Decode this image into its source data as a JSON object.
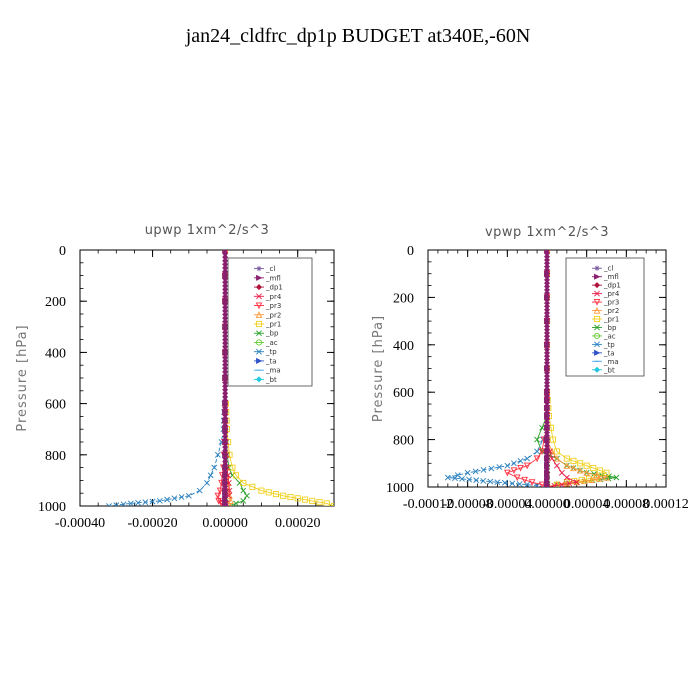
{
  "page": {
    "title": "jan24_cldfrc_dp1p  BUDGET at340E,-60N"
  },
  "series_styles": [
    {
      "name": "_cl",
      "color": "#7a5aa0",
      "marker": "star"
    },
    {
      "name": "_mfl",
      "color": "#8a1f6e",
      "marker": "tri-right"
    },
    {
      "name": "_dp1",
      "color": "#b0143c",
      "marker": "diamond"
    },
    {
      "name": "_pr4",
      "color": "#e8204a",
      "marker": "x"
    },
    {
      "name": "_pr3",
      "color": "#ff3040",
      "marker": "tri-down"
    },
    {
      "name": "_pr2",
      "color": "#ff9a3c",
      "marker": "tri-up"
    },
    {
      "name": "_pr1",
      "color": "#f0d020",
      "marker": "square"
    },
    {
      "name": "_bp",
      "color": "#2aa02a",
      "marker": "x"
    },
    {
      "name": "_ac",
      "color": "#66cc33",
      "marker": "circle"
    },
    {
      "name": "_tp",
      "color": "#2a80c0",
      "marker": "x"
    },
    {
      "name": "_ta",
      "color": "#3050c8",
      "marker": "tri-right"
    },
    {
      "name": "_ma",
      "color": "#4aa8e8",
      "marker": "dash"
    },
    {
      "name": "_bt",
      "color": "#20c8e0",
      "marker": "diamond"
    }
  ],
  "chart_data": [
    {
      "type": "line",
      "title": "upwp   1xm^2/s^3",
      "xlabel": "",
      "ylabel": "Pressure [hPa]",
      "xlim": [
        -0.0004,
        0.0003
      ],
      "ylim": [
        1000,
        0
      ],
      "xticks": [
        -0.0004,
        -0.0002,
        0.0,
        0.0002
      ],
      "xtick_labels": [
        "-0.00040",
        "-0.00020",
        "0.00000",
        "0.00020"
      ],
      "yticks": [
        0,
        200,
        400,
        600,
        800,
        1000
      ],
      "ytick_labels": [
        "0",
        "200",
        "400",
        "600",
        "800",
        "1000"
      ],
      "legend": "top-right",
      "y": [
        0,
        100,
        200,
        300,
        400,
        500,
        600,
        700,
        750,
        800,
        850,
        880,
        910,
        940,
        960,
        980,
        990,
        1000
      ],
      "series": [
        {
          "name": "_cl",
          "values": [
            0,
            0,
            0,
            0,
            0,
            0,
            0,
            0,
            0,
            0,
            0,
            0,
            0,
            0,
            0,
            0,
            0,
            0
          ]
        },
        {
          "name": "_mfl",
          "values": [
            0,
            0,
            0,
            0,
            0,
            0,
            0,
            0,
            0,
            0,
            0,
            0,
            0,
            0,
            0,
            0,
            0,
            0
          ]
        },
        {
          "name": "_dp1",
          "values": [
            0,
            0,
            0,
            0,
            0,
            0,
            0,
            0,
            0,
            0,
            0,
            0,
            0,
            0,
            0,
            0,
            0,
            0
          ]
        },
        {
          "name": "_pr4",
          "values": [
            0,
            0,
            0,
            0,
            0,
            0,
            0,
            0,
            2e-06,
            3e-06,
            5e-06,
            8e-06,
            1e-05,
            1.2e-05,
            1e-05,
            -1e-05,
            3e-06,
            0
          ]
        },
        {
          "name": "_pr3",
          "values": [
            0,
            0,
            0,
            0,
            0,
            0,
            0,
            0,
            -2e-06,
            -3e-06,
            -5e-06,
            -8e-06,
            -1e-05,
            -1.4e-05,
            -2e-05,
            -1.8e-05,
            -1e-05,
            -5e-06
          ]
        },
        {
          "name": "_pr2",
          "values": [
            0,
            0,
            0,
            0,
            0,
            0,
            0,
            0,
            0,
            2e-06,
            3e-06,
            5e-06,
            8e-06,
            1e-05,
            1.2e-05,
            1.5e-05,
            1e-05,
            5e-06
          ]
        },
        {
          "name": "_pr1",
          "values": [
            0,
            0,
            0,
            0,
            0,
            0,
            2e-06,
            5e-06,
            8e-06,
            1.2e-05,
            2e-05,
            3e-05,
            5e-05,
            0.0001,
            0.00016,
            0.00024,
            0.00028,
            0.0003
          ]
        },
        {
          "name": "_bp",
          "values": [
            0,
            0,
            0,
            0,
            0,
            0,
            0,
            2e-06,
            4e-06,
            6e-06,
            1e-05,
            2e-05,
            4e-05,
            5e-05,
            6e-05,
            5e-05,
            3e-05,
            1e-05
          ]
        },
        {
          "name": "_ac",
          "values": [
            0,
            0,
            0,
            0,
            0,
            0,
            0,
            0,
            0,
            0,
            0,
            0,
            0,
            0,
            0,
            0,
            0,
            0
          ]
        },
        {
          "name": "_tp",
          "values": [
            0,
            0,
            0,
            0,
            0,
            0,
            -2e-06,
            -5e-06,
            -1e-05,
            -2e-05,
            -3e-05,
            -4e-05,
            -5e-05,
            -7e-05,
            -0.0001,
            -0.00018,
            -0.00026,
            -0.00032
          ]
        },
        {
          "name": "_ta",
          "values": [
            0,
            0,
            0,
            0,
            0,
            0,
            0,
            0,
            0,
            0,
            0,
            0,
            0,
            0,
            0,
            0,
            0,
            0
          ]
        },
        {
          "name": "_ma",
          "values": [
            0,
            0,
            0,
            0,
            0,
            0,
            0,
            0,
            0,
            0,
            0,
            0,
            0,
            0,
            0,
            0,
            0,
            0
          ]
        },
        {
          "name": "_bt",
          "values": [
            0,
            0,
            0,
            0,
            0,
            0,
            0,
            0,
            0,
            0,
            0,
            0,
            0,
            0,
            0,
            0,
            0,
            0
          ]
        }
      ]
    },
    {
      "type": "line",
      "title": "vpwp   1xm^2/s^3",
      "xlabel": "",
      "ylabel": "Pressure [hPa]",
      "xlim": [
        -0.00012,
        0.00012
      ],
      "ylim": [
        1000,
        0
      ],
      "xticks": [
        -0.00012,
        -8e-05,
        -4e-05,
        0.0,
        4e-05,
        8e-05,
        0.00012
      ],
      "xtick_labels": [
        "-0.00012",
        "-0.00008",
        "-0.00004",
        "0.00000",
        "0.00004",
        "0.00008",
        "0.00012"
      ],
      "yticks": [
        0,
        200,
        400,
        600,
        800,
        1000
      ],
      "ytick_labels": [
        "0",
        "200",
        "400",
        "600",
        "800",
        "1000"
      ],
      "legend": "top-right",
      "y": [
        0,
        100,
        200,
        300,
        400,
        500,
        600,
        700,
        750,
        800,
        850,
        880,
        910,
        940,
        960,
        980,
        990,
        1000
      ],
      "series": [
        {
          "name": "_cl",
          "values": [
            0,
            0,
            0,
            0,
            0,
            0,
            0,
            0,
            0,
            0,
            0,
            0,
            0,
            0,
            0,
            0,
            0,
            0
          ]
        },
        {
          "name": "_mfl",
          "values": [
            0,
            0,
            0,
            0,
            0,
            0,
            0,
            0,
            0,
            0,
            0,
            0,
            0,
            0,
            0,
            0,
            0,
            0
          ]
        },
        {
          "name": "_dp1",
          "values": [
            0,
            0,
            0,
            0,
            0,
            0,
            0,
            0,
            0,
            0,
            0,
            0,
            0,
            0,
            0,
            0,
            0,
            0
          ]
        },
        {
          "name": "_pr4",
          "values": [
            0,
            0,
            0,
            0,
            0,
            0,
            0,
            0,
            0,
            0,
            3e-06,
            5e-06,
            1e-05,
            1.5e-05,
            2e-05,
            3e-05,
            1.5e-05,
            0
          ]
        },
        {
          "name": "_pr3",
          "values": [
            0,
            0,
            0,
            0,
            0,
            0,
            0,
            0,
            0,
            -3e-06,
            -5e-06,
            -1e-05,
            -2e-05,
            -4e-05,
            -3e-05,
            -1.5e-05,
            -5e-06,
            0
          ]
        },
        {
          "name": "_pr2",
          "values": [
            0,
            0,
            0,
            0,
            0,
            0,
            0,
            0,
            0,
            0,
            5e-06,
            1e-05,
            2e-05,
            4e-05,
            6e-05,
            3e-05,
            1e-05,
            0
          ]
        },
        {
          "name": "_pr1",
          "values": [
            0,
            0,
            0,
            0,
            0,
            0,
            0,
            2e-06,
            4e-06,
            6e-06,
            1e-05,
            2e-05,
            4e-05,
            6e-05,
            5e-05,
            2e-05,
            1e-05,
            0
          ]
        },
        {
          "name": "_bp",
          "values": [
            0,
            0,
            0,
            0,
            0,
            0,
            0,
            0,
            -5e-06,
            -1e-05,
            -5e-06,
            1e-05,
            2e-05,
            4e-05,
            7e-05,
            3e-05,
            1e-05,
            0
          ]
        },
        {
          "name": "_ac",
          "values": [
            0,
            0,
            0,
            0,
            0,
            0,
            0,
            0,
            0,
            0,
            0,
            0,
            0,
            0,
            0,
            0,
            0,
            0
          ]
        },
        {
          "name": "_tp",
          "values": [
            0,
            0,
            0,
            0,
            0,
            0,
            0,
            0,
            0,
            -4e-06,
            -1e-05,
            -2e-05,
            -4e-05,
            -8e-05,
            -0.0001,
            -5e-05,
            -2e-05,
            0
          ]
        },
        {
          "name": "_ta",
          "values": [
            0,
            0,
            0,
            0,
            0,
            0,
            0,
            0,
            0,
            0,
            0,
            0,
            0,
            0,
            0,
            0,
            0,
            0
          ]
        },
        {
          "name": "_ma",
          "values": [
            0,
            0,
            0,
            0,
            0,
            0,
            0,
            0,
            0,
            0,
            0,
            0,
            0,
            0,
            0,
            0,
            0,
            0
          ]
        },
        {
          "name": "_bt",
          "values": [
            0,
            0,
            0,
            0,
            0,
            0,
            0,
            0,
            0,
            0,
            0,
            0,
            0,
            0,
            0,
            0,
            0,
            0
          ]
        }
      ]
    }
  ]
}
